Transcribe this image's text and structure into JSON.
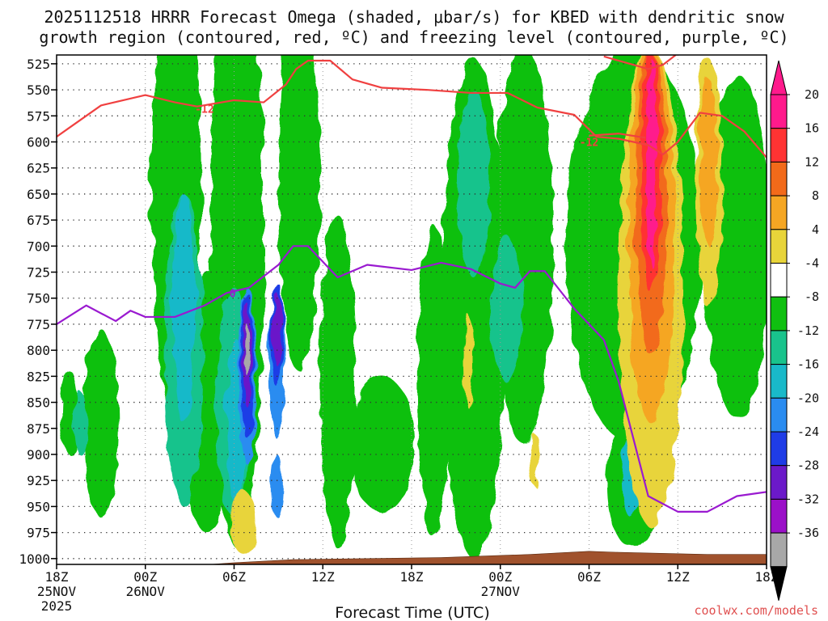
{
  "chart_data": {
    "type": "contour",
    "title_line1": "2025112518 HRRR Forecast Omega (shaded, μbar/s) for KBED with dendritic snow",
    "title_line2": "growth region (contoured, red, ºC) and freezing level (contoured, purple, ºC)",
    "xlabel": "Forecast Time (UTC)",
    "x_range_hours": [
      0,
      48
    ],
    "x_ticks": [
      {
        "h": 0,
        "l1": "18Z",
        "l2": "25NOV",
        "l3": "2025"
      },
      {
        "h": 6,
        "l1": "00Z",
        "l2": "26NOV",
        "l3": ""
      },
      {
        "h": 12,
        "l1": "06Z",
        "l2": "",
        "l3": ""
      },
      {
        "h": 18,
        "l1": "12Z",
        "l2": "",
        "l3": ""
      },
      {
        "h": 24,
        "l1": "18Z",
        "l2": "",
        "l3": ""
      },
      {
        "h": 30,
        "l1": "00Z",
        "l2": "27NOV",
        "l3": ""
      },
      {
        "h": 36,
        "l1": "06Z",
        "l2": "",
        "l3": ""
      },
      {
        "h": 42,
        "l1": "12Z",
        "l2": "",
        "l3": ""
      },
      {
        "h": 48,
        "l1": "18Z",
        "l2": "",
        "l3": ""
      }
    ],
    "y_ticks_mb": [
      525,
      550,
      575,
      600,
      625,
      650,
      675,
      700,
      725,
      750,
      775,
      800,
      825,
      850,
      875,
      900,
      925,
      950,
      975,
      1000
    ],
    "y_range_mb": [
      515,
      1018
    ],
    "colorbar": {
      "labels": [
        "20",
        "16",
        "12",
        "8",
        "4",
        "-4",
        "-8",
        "-12",
        "-16",
        "-20",
        "-24",
        "-28",
        "-32",
        "-36"
      ],
      "colors": [
        "#ff1a8c",
        "#ff3333",
        "#f26a1a",
        "#f5a623",
        "#e8d43a",
        "#ffffff",
        "#10c010",
        "#19c38c",
        "#19b9c9",
        "#2a8cf0",
        "#1f3ce6",
        "#6b19c9",
        "#9b10c8",
        "#a8a8a8"
      ],
      "top_color": "#ff1a8c",
      "bottom_color": "#000000"
    },
    "omega_colors": {
      "w1": "#10c010",
      "w2": "#19c38c",
      "w3": "#19b9c9",
      "w4": "#2a8cf0",
      "w5": "#1f3ce6",
      "w6": "#6b19c9",
      "w7": "#9b10c8",
      "w8": "#a8a8a8",
      "p1": "#e8d43a",
      "p2": "#f5a623",
      "p3": "#f26a1a",
      "p4": "#ff3333",
      "p5": "#ff1a8c"
    },
    "omega_cells": [
      {
        "h": 8.1,
        "p": 640,
        "hw": 1.7,
        "hh": 230,
        "level": "w1"
      },
      {
        "h": 3.0,
        "p": 870,
        "hw": 1.2,
        "hh": 90,
        "level": "w1"
      },
      {
        "h": 0.9,
        "p": 860,
        "hw": 0.6,
        "hh": 40,
        "level": "w1"
      },
      {
        "h": 12.2,
        "p": 690,
        "hw": 1.8,
        "hh": 300,
        "level": "w1"
      },
      {
        "h": 10.2,
        "p": 850,
        "hw": 2.0,
        "hh": 125,
        "level": "w1"
      },
      {
        "h": 16.4,
        "p": 640,
        "hw": 1.4,
        "hh": 180,
        "level": "w1"
      },
      {
        "h": 19.0,
        "p": 830,
        "hw": 1.2,
        "hh": 160,
        "level": "w1"
      },
      {
        "h": 22.0,
        "p": 890,
        "hw": 2.2,
        "hh": 65,
        "level": "w1"
      },
      {
        "h": 25.5,
        "p": 830,
        "hw": 1.1,
        "hh": 150,
        "level": "w1"
      },
      {
        "h": 28.2,
        "p": 760,
        "hw": 2.2,
        "hh": 240,
        "level": "w1"
      },
      {
        "h": 31.6,
        "p": 700,
        "hw": 2.0,
        "hh": 190,
        "level": "w1"
      },
      {
        "h": 39.0,
        "p": 700,
        "hw": 4.6,
        "hh": 190,
        "level": "w1"
      },
      {
        "h": 46.0,
        "p": 700,
        "hw": 2.2,
        "hh": 165,
        "level": "w1"
      },
      {
        "h": 39.0,
        "p": 930,
        "hw": 1.8,
        "hh": 60,
        "level": "w1"
      },
      {
        "h": 8.6,
        "p": 800,
        "hw": 1.3,
        "hh": 150,
        "level": "w2"
      },
      {
        "h": 12.0,
        "p": 850,
        "hw": 1.2,
        "hh": 110,
        "level": "w2"
      },
      {
        "h": 28.2,
        "p": 640,
        "hw": 1.1,
        "hh": 90,
        "level": "w2"
      },
      {
        "h": 30.4,
        "p": 760,
        "hw": 1.1,
        "hh": 70,
        "level": "w2"
      },
      {
        "h": 1.6,
        "p": 870,
        "hw": 0.5,
        "hh": 30,
        "level": "w2"
      },
      {
        "h": 8.6,
        "p": 760,
        "hw": 0.8,
        "hh": 110,
        "level": "w3"
      },
      {
        "h": 12.2,
        "p": 870,
        "hw": 0.7,
        "hh": 80,
        "level": "w3"
      },
      {
        "h": 38.8,
        "p": 920,
        "hw": 0.6,
        "hh": 40,
        "level": "w3"
      },
      {
        "h": 12.9,
        "p": 825,
        "hw": 0.6,
        "hh": 85,
        "level": "w4"
      },
      {
        "h": 14.9,
        "p": 815,
        "hw": 0.6,
        "hh": 70,
        "level": "w4"
      },
      {
        "h": 14.9,
        "p": 930,
        "hw": 0.4,
        "hh": 30,
        "level": "w4"
      },
      {
        "h": 12.9,
        "p": 815,
        "hw": 0.45,
        "hh": 70,
        "level": "w5"
      },
      {
        "h": 14.9,
        "p": 785,
        "hw": 0.45,
        "hh": 50,
        "level": "w5"
      },
      {
        "h": 12.9,
        "p": 805,
        "hw": 0.3,
        "hh": 50,
        "level": "w6"
      },
      {
        "h": 14.9,
        "p": 780,
        "hw": 0.3,
        "hh": 35,
        "level": "w6"
      },
      {
        "h": 12.9,
        "p": 800,
        "hw": 0.15,
        "hh": 25,
        "level": "w8"
      },
      {
        "h": 40.2,
        "p": 740,
        "hw": 2.2,
        "hh": 230,
        "level": "p1"
      },
      {
        "h": 44.1,
        "p": 640,
        "hw": 0.9,
        "hh": 120,
        "level": "p1"
      },
      {
        "h": 12.6,
        "p": 965,
        "hw": 0.9,
        "hh": 30,
        "level": "p1"
      },
      {
        "h": 27.8,
        "p": 810,
        "hw": 0.3,
        "hh": 45,
        "level": "p1"
      },
      {
        "h": 32.3,
        "p": 905,
        "hw": 0.3,
        "hh": 25,
        "level": "p1"
      },
      {
        "h": 40.2,
        "p": 690,
        "hw": 1.6,
        "hh": 180,
        "level": "p2"
      },
      {
        "h": 44.1,
        "p": 620,
        "hw": 0.6,
        "hh": 80,
        "level": "p2"
      },
      {
        "h": 40.2,
        "p": 660,
        "hw": 1.1,
        "hh": 145,
        "level": "p3"
      },
      {
        "h": 40.2,
        "p": 630,
        "hw": 0.7,
        "hh": 115,
        "level": "p4"
      },
      {
        "h": 40.2,
        "p": 620,
        "hw": 0.35,
        "hh": 100,
        "level": "p5"
      }
    ],
    "series": [
      {
        "name": "-12 C isotherm (upper)",
        "color": "#f04040",
        "label": "-12",
        "label_at": [
          10.0,
          568
        ],
        "points": [
          [
            0,
            595
          ],
          [
            1.0,
            585
          ],
          [
            3.0,
            565
          ],
          [
            6.0,
            555
          ],
          [
            8.0,
            562
          ],
          [
            9.5,
            566
          ],
          [
            12.0,
            560
          ],
          [
            14.0,
            562
          ],
          [
            15.5,
            545
          ],
          [
            16.2,
            530
          ],
          [
            17.0,
            522
          ],
          [
            18.5,
            522
          ],
          [
            20.0,
            540
          ],
          [
            22.0,
            548
          ],
          [
            25.0,
            550
          ],
          [
            28.0,
            553
          ],
          [
            30.5,
            553
          ],
          [
            32.5,
            567
          ],
          [
            35.0,
            574
          ],
          [
            36.5,
            595
          ],
          [
            38.0,
            597
          ],
          [
            40.0,
            603
          ],
          [
            41.0,
            612
          ],
          [
            42.0,
            600
          ],
          [
            43.5,
            572
          ],
          [
            45.0,
            575
          ],
          [
            46.5,
            590
          ],
          [
            48.0,
            615
          ]
        ]
      },
      {
        "name": "-12 C isotherm (lower)",
        "color": "#f04040",
        "label": "-12",
        "label_at": [
          36.0,
          600
        ],
        "points": [
          [
            36.0,
            594
          ],
          [
            38.0,
            592
          ],
          [
            39.8,
            596
          ]
        ]
      },
      {
        "name": "-12 C isotherm (top right)",
        "color": "#f04040",
        "label": "",
        "label_at": [
          0,
          0
        ],
        "points": [
          [
            37.0,
            518
          ],
          [
            40.0,
            530
          ],
          [
            41.0,
            526
          ],
          [
            42.0,
            515
          ]
        ]
      },
      {
        "name": "Freezing level (0 C)",
        "color": "#9a1ad0",
        "label": "0",
        "label_at": [
          11.9,
          745
        ],
        "points": [
          [
            0,
            775
          ],
          [
            2.0,
            757
          ],
          [
            4.0,
            772
          ],
          [
            5.0,
            762
          ],
          [
            6.0,
            768
          ],
          [
            8.0,
            768
          ],
          [
            10.0,
            757
          ],
          [
            11.5,
            745
          ],
          [
            13.0,
            740
          ],
          [
            15.0,
            718
          ],
          [
            16.0,
            700
          ],
          [
            17.0,
            700
          ],
          [
            19.0,
            730
          ],
          [
            21.0,
            718
          ],
          [
            24.0,
            723
          ],
          [
            26.0,
            716
          ],
          [
            28.0,
            722
          ],
          [
            30.0,
            736
          ],
          [
            31.0,
            740
          ],
          [
            32.0,
            724
          ],
          [
            33.0,
            724
          ],
          [
            35.0,
            760
          ],
          [
            37.0,
            790
          ],
          [
            38.0,
            830
          ],
          [
            40.0,
            940
          ],
          [
            42.0,
            955
          ],
          [
            44.0,
            955
          ],
          [
            46.0,
            940
          ],
          [
            48.0,
            936
          ]
        ]
      }
    ],
    "terrain_color": "#a0522d",
    "terrain": [
      [
        0,
        1012
      ],
      [
        6,
        1010
      ],
      [
        12,
        1004
      ],
      [
        16,
        1001
      ],
      [
        26,
        999
      ],
      [
        32,
        996
      ],
      [
        36,
        993
      ],
      [
        38,
        994
      ],
      [
        44,
        996
      ],
      [
        48,
        996
      ]
    ]
  },
  "credit": "coolwx.com/models",
  "credit_color": "#e05050"
}
